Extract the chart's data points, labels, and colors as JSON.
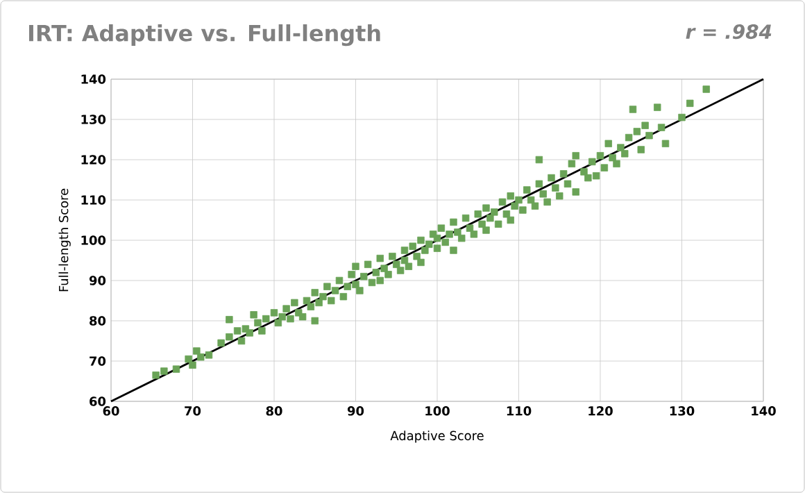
{
  "chart_data": {
    "type": "scatter",
    "title": "IRT: Adaptive vs. Full-length",
    "xlabel": "Adaptive Score",
    "ylabel": "Full-length Score",
    "annotations": [
      "r = .984"
    ],
    "xlim": [
      60,
      140
    ],
    "ylim": [
      60,
      140
    ],
    "xticks": [
      60,
      70,
      80,
      90,
      100,
      110,
      120,
      130,
      140
    ],
    "yticks": [
      60,
      70,
      80,
      90,
      100,
      110,
      120,
      130,
      140
    ],
    "grid": true,
    "series": [
      {
        "marker": "square",
        "color": "#6aa357",
        "x": [
          65.5,
          66.5,
          68,
          69.5,
          70,
          70.5,
          71,
          72,
          73.5,
          74.5,
          74.5,
          75.5,
          76,
          76.5,
          77,
          77.5,
          78,
          78.5,
          79,
          80,
          80.5,
          81,
          81.5,
          82,
          82.5,
          83,
          83.5,
          84,
          84.5,
          85,
          85,
          85.5,
          86,
          86.5,
          87,
          87.5,
          88,
          88.5,
          89,
          89.5,
          90,
          90,
          90.5,
          91,
          91.5,
          92,
          92.5,
          93,
          93,
          93.5,
          94,
          94.5,
          95,
          95.5,
          96,
          96,
          96.5,
          97,
          97.5,
          98,
          98,
          98.5,
          99,
          99.5,
          100,
          100,
          100.5,
          101,
          101.5,
          102,
          102,
          102.5,
          103,
          103.5,
          104,
          104.5,
          105,
          105.5,
          106,
          106,
          106.5,
          107,
          107.5,
          108,
          108.5,
          109,
          109,
          109.5,
          110,
          110.5,
          111,
          111.5,
          112,
          112.5,
          112.5,
          113,
          113.5,
          114,
          114.5,
          115,
          115.5,
          116,
          116.5,
          117,
          117,
          118,
          118.5,
          119,
          119.5,
          120,
          120.5,
          121,
          121.5,
          122,
          122.5,
          123,
          123.5,
          124,
          124.5,
          125,
          125.5,
          126,
          127,
          127.5,
          128,
          130,
          131,
          133
        ],
        "values": [
          66.5,
          67.5,
          68,
          70.5,
          69,
          72.5,
          71,
          71.5,
          74.5,
          76,
          80.3,
          77.5,
          75,
          78,
          77,
          81.5,
          79.5,
          77.5,
          80.5,
          82,
          79.5,
          81,
          83,
          80.5,
          84.5,
          82,
          81,
          85,
          83.5,
          87,
          80,
          84.5,
          86,
          88.5,
          85,
          87.5,
          90,
          86,
          88.5,
          91.5,
          89,
          93.5,
          87.5,
          91,
          94,
          89.5,
          92,
          95.5,
          90,
          93,
          91.5,
          96,
          94,
          92.5,
          97.5,
          95,
          93.5,
          98.5,
          96,
          94.5,
          100,
          97.5,
          99,
          101.5,
          98,
          100.5,
          103,
          99.5,
          101.5,
          104.5,
          97.5,
          102,
          100.5,
          105.5,
          103,
          101.5,
          106.5,
          104,
          102.5,
          108,
          105.5,
          107,
          104,
          109.5,
          106.5,
          111,
          105,
          108.5,
          110,
          107.5,
          112.5,
          110,
          108.5,
          114,
          120,
          111.5,
          109.5,
          115.5,
          113,
          111,
          116.5,
          114,
          119,
          121,
          112,
          117,
          115.5,
          119.5,
          116,
          121,
          118,
          124,
          120.5,
          119,
          123,
          121.5,
          125.5,
          132.5,
          127,
          122.5,
          128.5,
          126,
          133,
          128,
          124,
          130.5,
          134,
          137.5
        ]
      },
      {
        "type": "line",
        "color": "#000000",
        "x": [
          60,
          140
        ],
        "values": [
          60,
          140
        ]
      }
    ]
  }
}
